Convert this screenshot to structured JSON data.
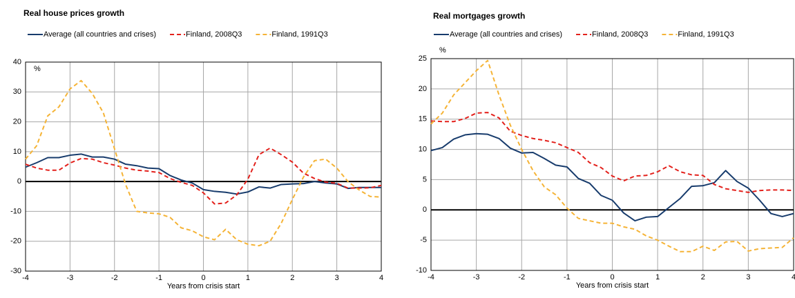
{
  "chart_data": [
    {
      "type": "line",
      "title": "Real house prices growth",
      "unit": "%",
      "xlabel": "Years from crisis start",
      "x": [
        -4,
        -3.75,
        -3.5,
        -3.25,
        -3,
        -2.75,
        -2.5,
        -2.25,
        -2,
        -1.75,
        -1.5,
        -1.25,
        -1,
        -0.75,
        -0.5,
        -0.25,
        0,
        0.25,
        0.5,
        0.75,
        1,
        1.25,
        1.5,
        1.75,
        2,
        2.25,
        2.5,
        2.75,
        3,
        3.25,
        3.5,
        3.75,
        4
      ],
      "xlim": [
        -4,
        4
      ],
      "xticks": [
        -4,
        -3,
        -2,
        -1,
        0,
        1,
        2,
        3,
        4
      ],
      "ylim": [
        -30,
        40
      ],
      "yticks": [
        -30,
        -20,
        -10,
        0,
        10,
        20,
        30,
        40
      ],
      "grid": true,
      "series": [
        {
          "name": "Average (all countries and crises)",
          "color": "#173b6c",
          "dashed": false,
          "values": [
            4.8,
            6.3,
            8,
            8,
            8.8,
            9.2,
            8.2,
            8.2,
            7.5,
            5.8,
            5.3,
            4.5,
            4.3,
            2,
            0.5,
            -0.5,
            -2.7,
            -3.3,
            -3.6,
            -4.2,
            -3.5,
            -1.8,
            -2.2,
            -1,
            -0.8,
            -0.7,
            0,
            -0.5,
            -0.8,
            -2.3,
            -2,
            -2,
            -2
          ]
        },
        {
          "name": "Finland, 2008Q3",
          "color": "#e3201b",
          "dashed": true,
          "values": [
            5.8,
            4.5,
            3.8,
            3.8,
            6.2,
            7.7,
            7.5,
            6.3,
            5.5,
            4.5,
            3.8,
            3.5,
            3,
            1,
            -0.3,
            -1.3,
            -3.8,
            -7.5,
            -7.2,
            -4.5,
            0.8,
            9,
            11.2,
            9,
            6.5,
            2.8,
            1,
            -0.2,
            -0.6,
            -2.2,
            -2.2,
            -2.1,
            -1.3
          ]
        },
        {
          "name": "Finland, 1991Q3",
          "color": "#f5b335",
          "dashed": true,
          "values": [
            7.5,
            12,
            22,
            25,
            31,
            33.8,
            29.5,
            23,
            11,
            -1,
            -10,
            -10.5,
            -10.8,
            -12,
            -15.5,
            -16.5,
            -18.5,
            -19.5,
            -16,
            -19.5,
            -21,
            -21.5,
            -20,
            -14,
            -6,
            1.5,
            7,
            7.5,
            4.5,
            0,
            -2.8,
            -5,
            -5.2
          ]
        }
      ]
    },
    {
      "type": "line",
      "title": "Real mortgages growth",
      "unit": "%",
      "xlabel": "Years from crisis start",
      "x": [
        -4,
        -3.75,
        -3.5,
        -3.25,
        -3,
        -2.75,
        -2.5,
        -2.25,
        -2,
        -1.75,
        -1.5,
        -1.25,
        -1,
        -0.75,
        -0.5,
        -0.25,
        0,
        0.25,
        0.5,
        0.75,
        1,
        1.25,
        1.5,
        1.75,
        2,
        2.25,
        2.5,
        2.75,
        3,
        3.25,
        3.5,
        3.75,
        4
      ],
      "xlim": [
        -4,
        4
      ],
      "xticks": [
        -4,
        -3,
        -2,
        -1,
        0,
        1,
        2,
        3,
        4
      ],
      "ylim": [
        -10,
        25
      ],
      "yticks": [
        -10,
        -5,
        0,
        5,
        10,
        15,
        20,
        25
      ],
      "grid": true,
      "series": [
        {
          "name": "Average (all countries and crises)",
          "color": "#173b6c",
          "dashed": false,
          "values": [
            9.8,
            10.3,
            11.7,
            12.4,
            12.6,
            12.5,
            11.8,
            10.2,
            9.4,
            9.5,
            8.5,
            7.4,
            7.1,
            5.2,
            4.4,
            2.4,
            1.6,
            -0.5,
            -1.8,
            -1.2,
            -1.1,
            0.4,
            1.9,
            3.9,
            4,
            4.5,
            6.5,
            4.7,
            3.6,
            1.6,
            -0.6,
            -1.1,
            -0.6
          ]
        },
        {
          "name": "Finland, 2008Q3",
          "color": "#e3201b",
          "dashed": true,
          "values": [
            14.7,
            14.6,
            14.6,
            15.1,
            16,
            16.1,
            15.2,
            13,
            12.3,
            11.8,
            11.5,
            11.1,
            10.3,
            9.5,
            7.8,
            7,
            5.6,
            4.8,
            5.6,
            5.7,
            6.3,
            7.3,
            6.3,
            5.8,
            5.7,
            4.2,
            3.5,
            3.2,
            2.9,
            3.2,
            3.3,
            3.3,
            3.2
          ]
        },
        {
          "name": "Finland, 1991Q3",
          "color": "#f5b335",
          "dashed": true,
          "values": [
            14.2,
            16,
            19,
            21,
            23,
            24.7,
            19,
            14,
            10,
            6.5,
            3.8,
            2.5,
            0.3,
            -1.4,
            -1.8,
            -2.2,
            -2.2,
            -2.8,
            -3.2,
            -4.3,
            -5,
            -6,
            -6.9,
            -6.9,
            -6,
            -6.7,
            -5.3,
            -5.2,
            -6.8,
            -6.4,
            -6.3,
            -6.2,
            -4.6
          ]
        }
      ]
    }
  ]
}
